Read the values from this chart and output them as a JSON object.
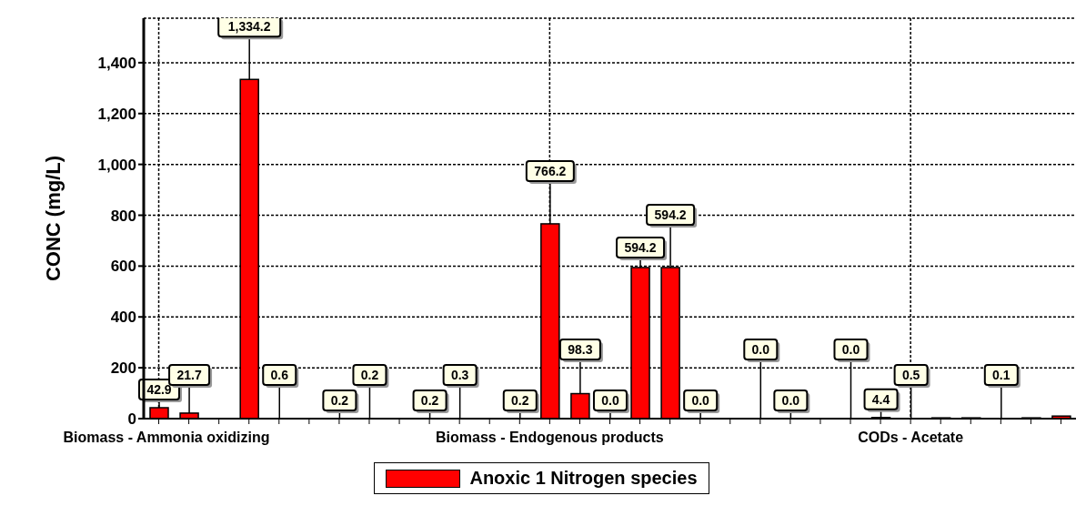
{
  "chart_data": {
    "type": "bar",
    "categories": [
      "Biomass - Ammonia oxidizing",
      null,
      null,
      null,
      null,
      null,
      null,
      null,
      null,
      null,
      null,
      null,
      null,
      "Biomass - Endogenous products",
      null,
      null,
      null,
      null,
      null,
      null,
      null,
      null,
      null,
      null,
      null,
      "CODs - Acetate",
      null,
      null,
      null,
      null,
      null
    ],
    "series": [
      {
        "name": "Anoxic 1 Nitrogen species",
        "color": "#ff0000",
        "values": [
          42.9,
          21.7,
          0,
          1334.2,
          0.6,
          0,
          0.2,
          0.2,
          0,
          0.2,
          0.3,
          0,
          0.2,
          766.2,
          98.3,
          0.0,
          594.2,
          594.2,
          0.0,
          0,
          0.0,
          0.0,
          0,
          0.0,
          4.4,
          0.5,
          3,
          3,
          0.1,
          3,
          10
        ],
        "value_labels": [
          "42.9",
          "21.7",
          null,
          "1,334.2",
          "0.6",
          null,
          "0.2",
          "0.2",
          null,
          "0.2",
          "0.3",
          null,
          "0.2",
          "766.2",
          "98.3",
          "0.0",
          "594.2",
          "594.2",
          "0.0",
          null,
          "0.0",
          "0.0",
          null,
          "0.0",
          "4.4",
          "0.5",
          null,
          null,
          "0.1",
          null,
          null
        ]
      }
    ],
    "ylabel": "CONC (mg/L)",
    "ylim": [
      0,
      1575
    ],
    "yticks": [
      0,
      200,
      400,
      600,
      800,
      {
        "value": 1000,
        "label": "1,000"
      },
      {
        "value": 1200,
        "label": "1,200"
      },
      {
        "value": 1400,
        "label": "1,400"
      }
    ],
    "grid": true,
    "legend": "bottom"
  }
}
